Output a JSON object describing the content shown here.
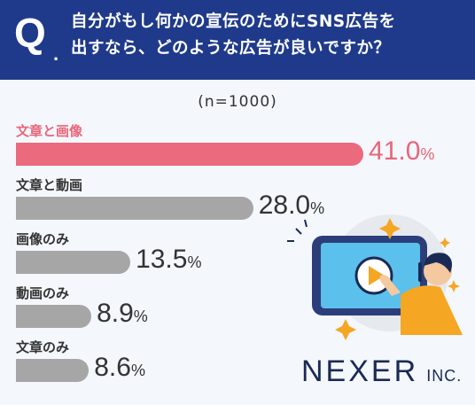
{
  "header": {
    "q_letter": "Q",
    "q_dot": ".",
    "title": "自分がもし何かの宣伝のためにSNS広告を\n出すなら、どのような広告が良いですか？"
  },
  "note": "(n=1000)",
  "brand": {
    "main": "NEXER",
    "sub": "INC."
  },
  "colors": {
    "highlight": "#eb6a7d",
    "bar": "#a6a6a6",
    "header": "#1f3a8a"
  },
  "chart_data": {
    "type": "bar",
    "orientation": "horizontal",
    "title": "自分がもし何かの宣伝のためにSNS広告を出すなら、どのような広告が良いですか？",
    "note": "(n=1000)",
    "unit": "%",
    "categories": [
      "文章と画像",
      "文章と動画",
      "画像のみ",
      "動画のみ",
      "文章のみ"
    ],
    "values": [
      41.0,
      28.0,
      13.5,
      8.9,
      8.6
    ],
    "value_labels": [
      "41.0",
      "28.0",
      "13.5",
      "8.9",
      "8.6"
    ],
    "highlight_index": 0,
    "xlim": [
      0,
      41.0
    ]
  }
}
